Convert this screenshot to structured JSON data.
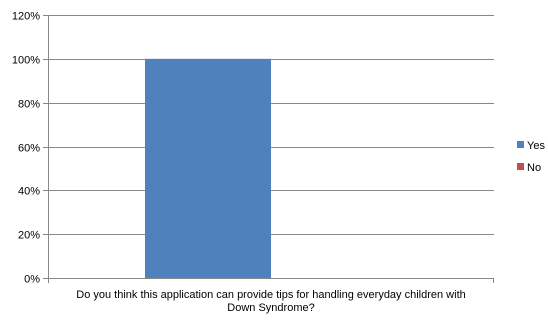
{
  "chart_data": {
    "type": "bar",
    "categories": [
      "Do you think this application can provide tips for handling everyday children with Down Syndrome?"
    ],
    "category_label_lines": [
      "Do you think this application can provide tips for handling everyday children with",
      "Down Syndrome?"
    ],
    "series": [
      {
        "name": "Yes",
        "values": [
          100
        ],
        "color": "#4f81bd"
      },
      {
        "name": "No",
        "values": [
          0
        ],
        "color": "#c0504d"
      }
    ],
    "ylim": [
      0,
      120
    ],
    "y_ticks": [
      0,
      20,
      40,
      60,
      80,
      100,
      120
    ],
    "y_tick_labels": [
      "0%",
      "20%",
      "40%",
      "60%",
      "80%",
      "100%",
      "120%"
    ],
    "grid": true,
    "legend_position": "right",
    "title": "",
    "xlabel": "",
    "ylabel": ""
  }
}
